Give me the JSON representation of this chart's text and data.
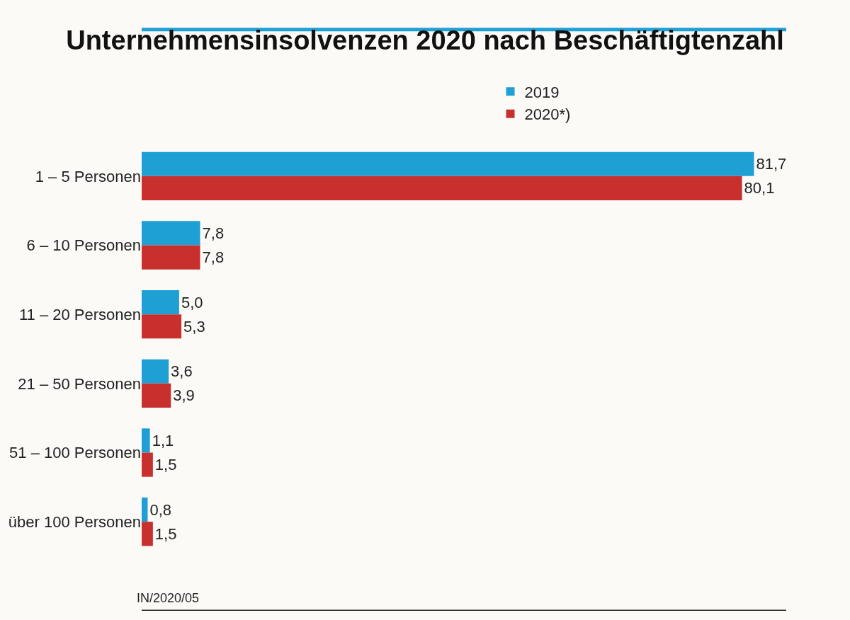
{
  "chart_data": {
    "type": "bar",
    "title": "Unternehmensinsolvenzen 2020 nach Beschäftigtenzahl",
    "orientation": "horizontal",
    "categories": [
      "1 – 5 Personen",
      "6 – 10 Personen",
      "11 – 20 Personen",
      "21 – 50 Personen",
      "51 – 100 Personen",
      "über 100 Personen"
    ],
    "series": [
      {
        "name": "2019",
        "color": "#1ea0d5",
        "values": [
          81.7,
          7.8,
          5.0,
          3.6,
          1.1,
          0.8
        ],
        "value_labels": [
          "81,7",
          "7,8",
          "5,0",
          "3,6",
          "1,1",
          "0,8"
        ]
      },
      {
        "name": "2020*)",
        "color": "#c8302e",
        "values": [
          80.1,
          7.8,
          5.3,
          3.9,
          1.5,
          1.5
        ],
        "value_labels": [
          "80,1",
          "7,8",
          "5,3",
          "3,9",
          "1,5",
          "1,5"
        ]
      }
    ],
    "legend": "top",
    "grid": false,
    "annotations": [
      "IN/2020/05"
    ]
  }
}
